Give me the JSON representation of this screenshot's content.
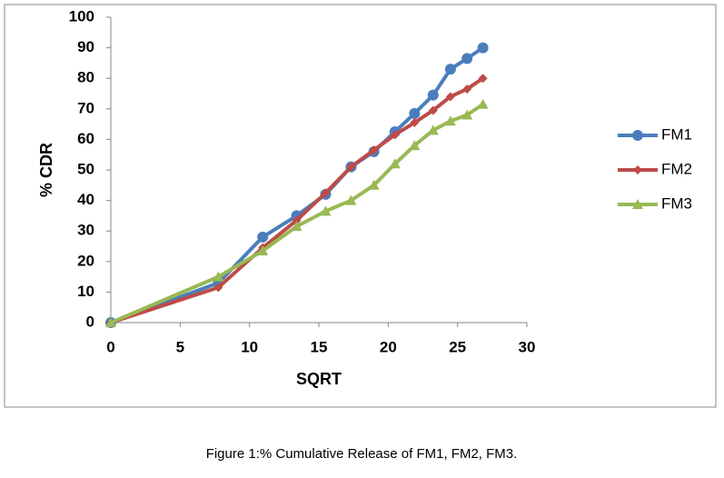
{
  "chart_data": {
    "type": "line",
    "caption": "Figure 1:% Cumulative Release of FM1, FM2, FM3.",
    "x_label": "SQRT",
    "y_label": "% CDR",
    "x": [
      0,
      7.75,
      10.95,
      13.4,
      15.49,
      17.32,
      18.97,
      20.49,
      21.9,
      23.24,
      24.49,
      25.69,
      26.83
    ],
    "series": [
      {
        "name": "FM1",
        "color": "#4a7ebb",
        "marker": "circle",
        "values": [
          0,
          13,
          28,
          35,
          42,
          51,
          56,
          62.5,
          68.5,
          74.5,
          83,
          86.5,
          90
        ]
      },
      {
        "name": "FM2",
        "color": "#be4b48",
        "marker": "diamond",
        "values": [
          0,
          11.5,
          24.5,
          33.5,
          42.5,
          51,
          56.5,
          61.5,
          65.5,
          69.5,
          74,
          76.5,
          80
        ]
      },
      {
        "name": "FM3",
        "color": "#98b954",
        "marker": "triangle",
        "values": [
          0,
          15,
          23.5,
          31.5,
          36.5,
          40,
          45,
          52,
          58,
          63,
          66,
          68,
          71.5
        ]
      }
    ],
    "xlim": [
      0,
      30
    ],
    "xticks": [
      0,
      5,
      10,
      15,
      20,
      25,
      30
    ],
    "ylim": [
      0,
      100
    ],
    "yticks": [
      0,
      10,
      20,
      30,
      40,
      50,
      60,
      70,
      80,
      90,
      100
    ],
    "grid": false,
    "legend": "right"
  }
}
